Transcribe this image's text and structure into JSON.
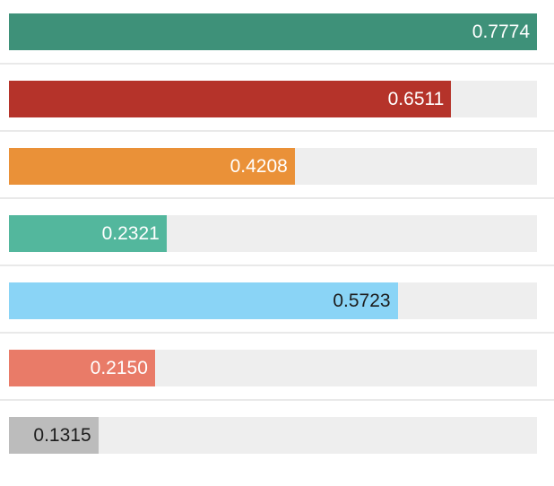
{
  "chart_data": {
    "type": "bar",
    "orientation": "horizontal",
    "title": "",
    "xlabel": "",
    "ylabel": "",
    "grid": false,
    "legend": false,
    "xlim": [
      0,
      0.7774
    ],
    "values": [
      0.7774,
      0.6511,
      0.4208,
      0.2321,
      0.5723,
      0.215,
      0.1315
    ],
    "labels": [
      "0.7774",
      "0.6511",
      "0.4208",
      "0.2321",
      "0.5723",
      "0.2150",
      "0.1315"
    ],
    "bar_colors": [
      "#3e9179",
      "#b5332a",
      "#ea9138",
      "#53b79d",
      "#8ad4f6",
      "#e97b68",
      "#bcbcbc"
    ],
    "label_colors": [
      "#ffffff",
      "#ffffff",
      "#ffffff",
      "#ffffff",
      "#1d1d1d",
      "#ffffff",
      "#1d1d1d"
    ],
    "track_color": "#eeeeee",
    "separator_color": "#e9e9e9",
    "background_color": "#ffffff",
    "value_alignment": "right-inside-bar"
  }
}
